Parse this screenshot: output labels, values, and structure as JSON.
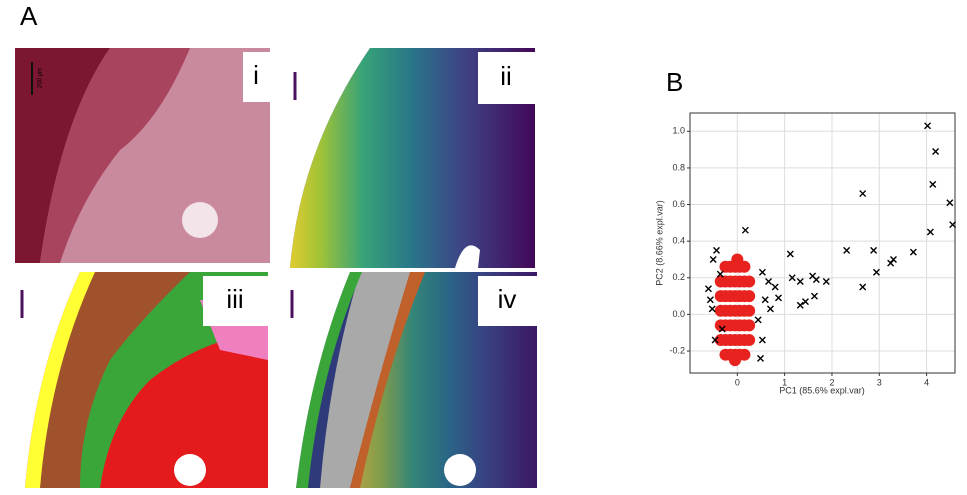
{
  "panels": {
    "a_label": "A",
    "b_label": "B",
    "scale_bar": "200 µm",
    "sub_labels": [
      "i",
      "ii",
      "iii",
      "iv"
    ]
  },
  "chart_data": {
    "type": "scatter",
    "xlabel": "PC1 (85.6% expl.var)",
    "ylabel": "PC2 (8.66% expl.var)",
    "xlim": [
      -1.0,
      4.6
    ],
    "ylim": [
      -0.32,
      1.1
    ],
    "xticks": [
      0,
      1,
      2,
      3,
      4
    ],
    "yticks": [
      -0.2,
      {
        "value": 0,
        "label": "0.0"
      },
      0.2,
      0.4,
      0.6,
      0.8,
      {
        "value": 1,
        "label": "1.0"
      }
    ],
    "grid": true,
    "series": [
      {
        "color": "#e8231f",
        "marker": "circle",
        "x": [
          -0.25,
          -0.15,
          -0.05,
          0.05,
          0.15,
          -0.35,
          -0.25,
          -0.15,
          -0.05,
          0.05,
          0.15,
          0.25,
          -0.35,
          -0.25,
          -0.15,
          -0.05,
          0.05,
          0.15,
          0.25,
          -0.35,
          -0.25,
          -0.15,
          -0.05,
          0.05,
          0.15,
          0.25,
          -0.35,
          -0.25,
          -0.15,
          -0.05,
          0.05,
          0.15,
          0.25,
          -0.35,
          -0.25,
          -0.15,
          -0.05,
          0.05,
          0.15,
          0.25,
          -0.25,
          -0.15,
          -0.05,
          0.05,
          0.15,
          0.0,
          -0.05
        ],
        "values": [
          -0.22,
          -0.22,
          -0.22,
          -0.22,
          -0.22,
          -0.14,
          -0.14,
          -0.14,
          -0.14,
          -0.14,
          -0.14,
          -0.14,
          -0.06,
          -0.06,
          -0.06,
          -0.06,
          -0.06,
          -0.06,
          -0.06,
          0.02,
          0.02,
          0.02,
          0.02,
          0.02,
          0.02,
          0.02,
          0.1,
          0.1,
          0.1,
          0.1,
          0.1,
          0.1,
          0.1,
          0.18,
          0.18,
          0.18,
          0.18,
          0.18,
          0.18,
          0.18,
          0.26,
          0.26,
          0.26,
          0.26,
          0.26,
          0.3,
          -0.25
        ]
      },
      {
        "color": "#000000",
        "marker": "x",
        "x": [
          4.02,
          4.19,
          4.13,
          4.49,
          4.08,
          4.55,
          2.65,
          2.31,
          2.88,
          3.72,
          3.3,
          3.24,
          2.94,
          2.65,
          1.12,
          0.17,
          0.53,
          1.16,
          1.33,
          1.59,
          1.67,
          1.88,
          1.33,
          1.44,
          1.63,
          0.8,
          0.66,
          0.87,
          0.7,
          0.49,
          0.44,
          -0.44,
          -0.61,
          -0.53,
          -0.47,
          -0.51,
          -0.36,
          -0.57,
          -0.32,
          0.53,
          0.59
        ],
        "values": [
          1.03,
          0.89,
          0.71,
          0.61,
          0.45,
          0.49,
          0.66,
          0.35,
          0.35,
          0.34,
          0.3,
          0.28,
          0.23,
          0.15,
          0.33,
          0.46,
          0.23,
          0.2,
          0.18,
          0.21,
          0.19,
          0.18,
          0.05,
          0.07,
          0.1,
          0.15,
          0.18,
          0.09,
          0.03,
          -0.24,
          -0.03,
          0.35,
          0.14,
          0.03,
          -0.14,
          0.3,
          0.22,
          0.08,
          -0.08,
          -0.14,
          0.08
        ]
      }
    ]
  }
}
